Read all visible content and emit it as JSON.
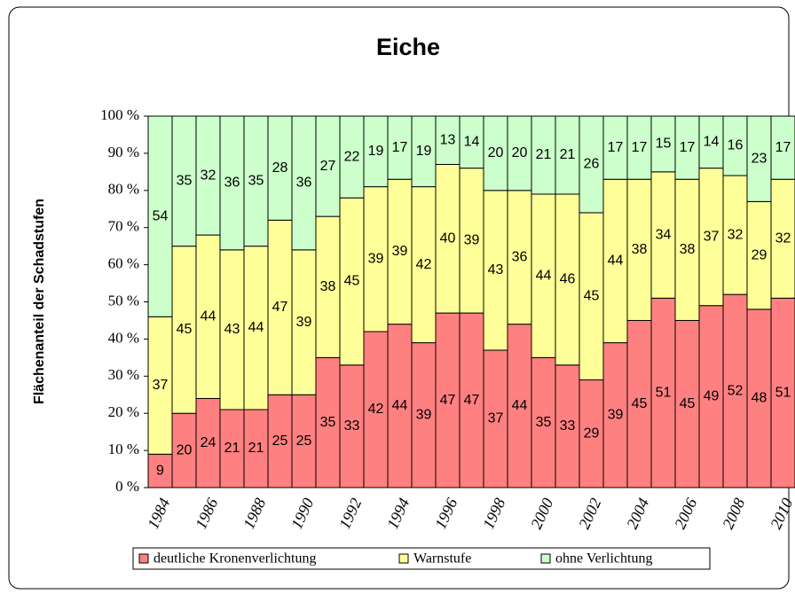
{
  "chart_data": {
    "type": "stacked-bar",
    "title": "Eiche",
    "y_label": "Flächenanteil der Schadstufen",
    "categories": [
      "1984",
      null,
      "1986",
      null,
      "1988",
      null,
      "1990",
      null,
      "1992",
      null,
      "1994",
      null,
      "1996",
      null,
      "1998",
      null,
      "2000",
      null,
      "2002",
      null,
      "2004",
      null,
      "2006",
      null,
      "2008",
      null,
      "2010"
    ],
    "series": [
      {
        "name": "deutliche Kronenverlichtung",
        "color": "#ff8080",
        "values": [
          9,
          20,
          24,
          21,
          21,
          25,
          25,
          35,
          33,
          42,
          44,
          39,
          47,
          47,
          37,
          44,
          35,
          33,
          29,
          39,
          45,
          51,
          45,
          49,
          52,
          48,
          51
        ]
      },
      {
        "name": "Warnstufe",
        "color": "#ffff99",
        "values": [
          37,
          45,
          44,
          43,
          44,
          47,
          39,
          38,
          45,
          39,
          39,
          42,
          40,
          39,
          43,
          36,
          44,
          46,
          45,
          44,
          38,
          34,
          38,
          37,
          32,
          29,
          32
        ]
      },
      {
        "name": "ohne Verlichtung",
        "color": "#ccffcc",
        "values": [
          54,
          35,
          32,
          36,
          35,
          28,
          36,
          27,
          22,
          19,
          17,
          19,
          13,
          14,
          20,
          20,
          21,
          21,
          26,
          17,
          17,
          15,
          17,
          14,
          16,
          23,
          17
        ]
      }
    ],
    "ylim": [
      0,
      100
    ],
    "yticks": [
      {
        "value": 0,
        "label": "0 %"
      },
      {
        "value": 10,
        "label": "10 %"
      },
      {
        "value": 20,
        "label": "20 %"
      },
      {
        "value": 30,
        "label": "30 %"
      },
      {
        "value": 40,
        "label": "40 %"
      },
      {
        "value": 50,
        "label": "50 %"
      },
      {
        "value": 60,
        "label": "60 %"
      },
      {
        "value": 70,
        "label": "70 %"
      },
      {
        "value": 80,
        "label": "80 %"
      },
      {
        "value": 90,
        "label": "90 %"
      },
      {
        "value": 100,
        "label": "100 %"
      }
    ],
    "grid": false,
    "legend": "bottom"
  }
}
